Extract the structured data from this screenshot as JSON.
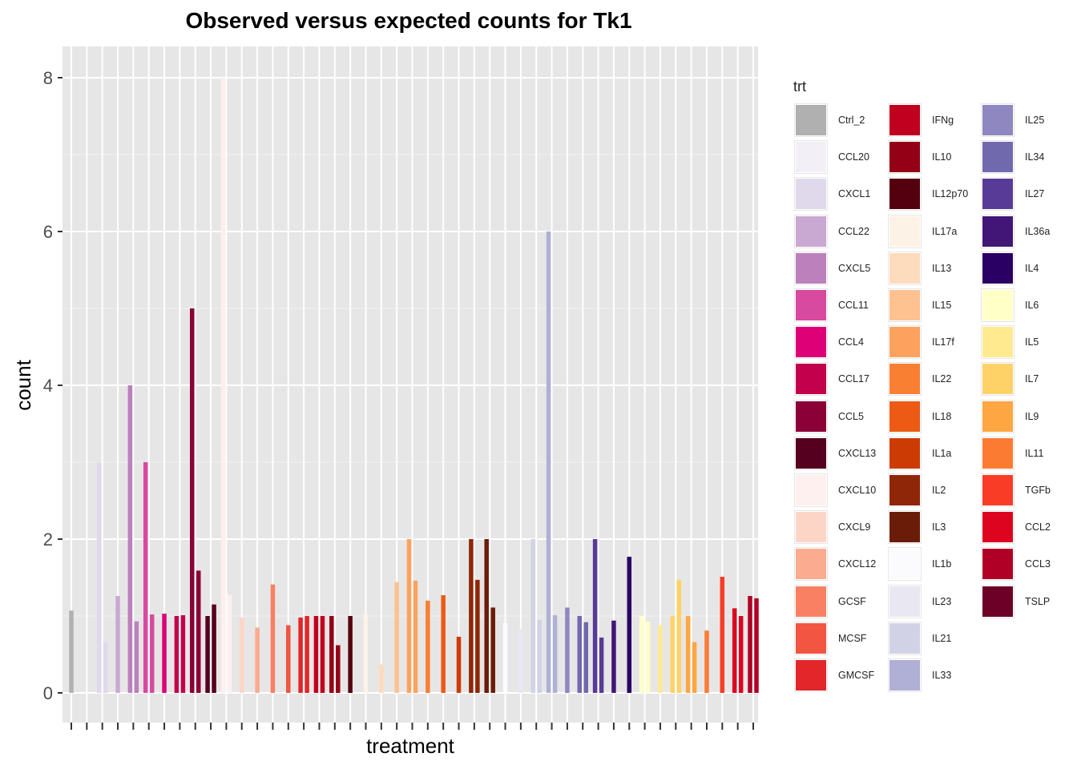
{
  "chart_data": {
    "type": "bar",
    "title": "Observed versus expected counts for Tk1",
    "xlabel": "treatment",
    "ylabel": "count",
    "ylim": [
      0,
      8.4
    ],
    "yticks": [
      0,
      2,
      4,
      6,
      8
    ],
    "grid": true,
    "legend_title": "trt",
    "legend_position": "right",
    "legend": [
      {
        "label": "Ctrl_2",
        "color": "#b0b0b0"
      },
      {
        "label": "CCL20",
        "color": "#f2eff6"
      },
      {
        "label": "CXCL1",
        "color": "#e0d8eb"
      },
      {
        "label": "CCL22",
        "color": "#c9a8d1"
      },
      {
        "label": "CXCL5",
        "color": "#bc80bd"
      },
      {
        "label": "CCL11",
        "color": "#d74aa0"
      },
      {
        "label": "CCL4",
        "color": "#de0077"
      },
      {
        "label": "CCL17",
        "color": "#c2004b"
      },
      {
        "label": "CCL5",
        "color": "#8a0037"
      },
      {
        "label": "CXCL13",
        "color": "#55001e"
      },
      {
        "label": "CXCL10",
        "color": "#fdf0ee"
      },
      {
        "label": "CXCL9",
        "color": "#fcd5c7"
      },
      {
        "label": "CXCL12",
        "color": "#fbab8f"
      },
      {
        "label": "GCSF",
        "color": "#f98062"
      },
      {
        "label": "MCSF",
        "color": "#f25541"
      },
      {
        "label": "GMCSF",
        "color": "#e2262a"
      },
      {
        "label": "IFNg",
        "color": "#c0001e"
      },
      {
        "label": "IL10",
        "color": "#940016"
      },
      {
        "label": "IL12p70",
        "color": "#55000f"
      },
      {
        "label": "IL17a",
        "color": "#fdf2e6"
      },
      {
        "label": "IL13",
        "color": "#fddbbd"
      },
      {
        "label": "IL15",
        "color": "#fdc290"
      },
      {
        "label": "IL17f",
        "color": "#fca25e"
      },
      {
        "label": "IL22",
        "color": "#f97f33"
      },
      {
        "label": "IL18",
        "color": "#ec5a14"
      },
      {
        "label": "IL1a",
        "color": "#cd3b04"
      },
      {
        "label": "IL2",
        "color": "#8f2607"
      },
      {
        "label": "IL3",
        "color": "#6b1c09"
      },
      {
        "label": "IL1b",
        "color": "#fbfbfd"
      },
      {
        "label": "IL23",
        "color": "#e9e8f2"
      },
      {
        "label": "IL21",
        "color": "#d2d2e6"
      },
      {
        "label": "IL33",
        "color": "#b0afd5"
      },
      {
        "label": "IL25",
        "color": "#8f87bf"
      },
      {
        "label": "IL34",
        "color": "#7169ae"
      },
      {
        "label": "IL27",
        "color": "#583b96"
      },
      {
        "label": "IL36a",
        "color": "#421677"
      },
      {
        "label": "IL4",
        "color": "#2a0064"
      },
      {
        "label": "IL6",
        "color": "#ffffc8"
      },
      {
        "label": "IL5",
        "color": "#ffea90"
      },
      {
        "label": "IL7",
        "color": "#fed267"
      },
      {
        "label": "IL9",
        "color": "#fea641"
      },
      {
        "label": "IL11",
        "color": "#fc7b32"
      },
      {
        "label": "TGFb",
        "color": "#f83c26"
      },
      {
        "label": "CCL2",
        "color": "#dd0420"
      },
      {
        "label": "CCL3",
        "color": "#b00026"
      },
      {
        "label": "TSLP",
        "color": "#6d0026"
      }
    ],
    "n_categories": 45,
    "bars": [
      {
        "category": 0,
        "values": [
          1.07
        ],
        "color": "#b0b0b0"
      },
      {
        "category": 1,
        "values": [
          0.0
        ],
        "color": "#f2eff6"
      },
      {
        "category": 2,
        "values": [
          3.0,
          0.66
        ],
        "color": "#e0d8eb"
      },
      {
        "category": 3,
        "values": [
          1.26
        ],
        "color": "#c9a8d1"
      },
      {
        "category": 4,
        "values": [
          4.0,
          0.93
        ],
        "color": "#bc80bd"
      },
      {
        "category": 5,
        "values": [
          3.0,
          1.02
        ],
        "color": "#d74aa0"
      },
      {
        "category": 6,
        "values": [
          1.03
        ],
        "color": "#de0077"
      },
      {
        "category": 7,
        "values": [
          1.0,
          1.01
        ],
        "color": "#c2004b"
      },
      {
        "category": 8,
        "values": [
          5.0,
          1.59
        ],
        "color": "#8a0037"
      },
      {
        "category": 9,
        "values": [
          1.0,
          1.15
        ],
        "color": "#55001e"
      },
      {
        "category": 10,
        "values": [
          8.0,
          1.28
        ],
        "color": "#fdf0ee"
      },
      {
        "category": 11,
        "values": [
          0.98
        ],
        "color": "#fcd5c7"
      },
      {
        "category": 12,
        "values": [
          0.85
        ],
        "color": "#fbab8f"
      },
      {
        "category": 13,
        "values": [
          1.41
        ],
        "color": "#f98062"
      },
      {
        "category": 14,
        "values": [
          0.88
        ],
        "color": "#f25541"
      },
      {
        "category": 15,
        "values": [
          0.98,
          1.0
        ],
        "color": "#e2262a"
      },
      {
        "category": 16,
        "values": [
          1.0,
          1.0
        ],
        "color": "#c0001e"
      },
      {
        "category": 17,
        "values": [
          1.0,
          0.62
        ],
        "color": "#940016"
      },
      {
        "category": 18,
        "values": [
          1.0
        ],
        "color": "#55000f"
      },
      {
        "category": 19,
        "values": [
          1.03
        ],
        "color": "#fdf2e6"
      },
      {
        "category": 20,
        "values": [
          0.37
        ],
        "color": "#fddbbd"
      },
      {
        "category": 21,
        "values": [
          1.44
        ],
        "color": "#fdc290"
      },
      {
        "category": 22,
        "values": [
          2.0,
          1.46
        ],
        "color": "#fca25e"
      },
      {
        "category": 23,
        "values": [
          1.2
        ],
        "color": "#f97f33"
      },
      {
        "category": 24,
        "values": [
          1.27
        ],
        "color": "#ec5a14"
      },
      {
        "category": 25,
        "values": [
          0.73
        ],
        "color": "#cd3b04"
      },
      {
        "category": 26,
        "values": [
          2.0,
          1.47
        ],
        "color": "#8f2607"
      },
      {
        "category": 27,
        "values": [
          2.0,
          1.11
        ],
        "color": "#6b1c09"
      },
      {
        "category": 28,
        "values": [
          0.91
        ],
        "color": "#fbfbfd"
      },
      {
        "category": 29,
        "values": [
          0.83
        ],
        "color": "#e9e8f2"
      },
      {
        "category": 30,
        "values": [
          2.0,
          0.95
        ],
        "color": "#d2d2e6"
      },
      {
        "category": 31,
        "values": [
          6.0,
          1.01
        ],
        "color": "#b0afd5"
      },
      {
        "category": 32,
        "values": [
          1.11
        ],
        "color": "#8f87bf"
      },
      {
        "category": 33,
        "values": [
          1.0,
          0.92
        ],
        "color": "#7169ae"
      },
      {
        "category": 34,
        "values": [
          2.0,
          0.72
        ],
        "color": "#583b96"
      },
      {
        "category": 35,
        "values": [
          0.94
        ],
        "color": "#421677"
      },
      {
        "category": 36,
        "values": [
          1.77
        ],
        "color": "#2a0064"
      },
      {
        "category": 37,
        "values": [
          1.0,
          0.93
        ],
        "color": "#ffffc8"
      },
      {
        "category": 38,
        "values": [
          0.88
        ],
        "color": "#ffea90"
      },
      {
        "category": 39,
        "values": [
          1.0,
          1.47
        ],
        "color": "#fed267"
      },
      {
        "category": 40,
        "values": [
          1.0,
          0.66
        ],
        "color": "#fea641"
      },
      {
        "category": 41,
        "values": [
          0.81
        ],
        "color": "#fc7b32"
      },
      {
        "category": 42,
        "values": [
          1.51
        ],
        "color": "#f83c26"
      },
      {
        "category": 43,
        "values": [
          1.1,
          1.0
        ],
        "color": "#dd0420"
      },
      {
        "category": 44,
        "values": [
          1.26,
          1.23
        ],
        "color": "#b00026"
      }
    ]
  }
}
